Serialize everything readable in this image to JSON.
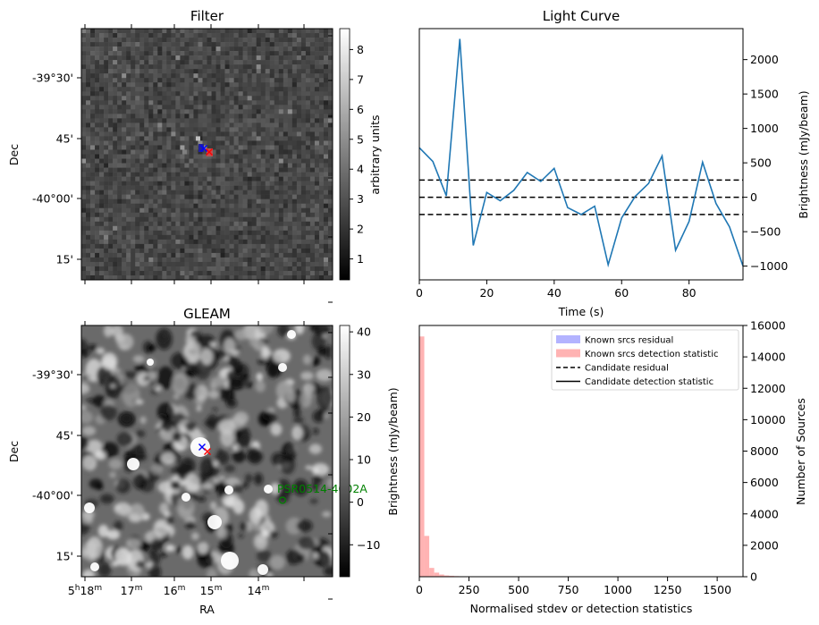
{
  "chart_data": [
    {
      "type": "heatmap",
      "title": "Filter",
      "ylabel": "Dec",
      "y_ticks": [
        "-39°30'",
        "45'",
        "-40°00'",
        "15'"
      ],
      "colorbar": {
        "label": "arbitrary units",
        "ticks": [
          1,
          2,
          3,
          4,
          5,
          6,
          7,
          8
        ],
        "range": [
          0.3,
          8.7
        ]
      },
      "markers": [
        {
          "symbol": "x",
          "color": "#0000ff"
        },
        {
          "symbol": "x",
          "color": "#ff0000"
        }
      ]
    },
    {
      "type": "line",
      "title": "Light Curve",
      "xlabel": "Time (s)",
      "ylabel": "Brightness (mJy/beam)",
      "xlim": [
        0,
        96
      ],
      "ylim": [
        -1200,
        2450
      ],
      "x_ticks": [
        0,
        20,
        40,
        60,
        80
      ],
      "y_ticks": [
        -1000,
        -500,
        0,
        500,
        1000,
        1500,
        2000
      ],
      "x": [
        0,
        4,
        8,
        12,
        16,
        20,
        24,
        28,
        32,
        36,
        40,
        44,
        48,
        52,
        56,
        60,
        64,
        68,
        72,
        76,
        80,
        84,
        88,
        92,
        96
      ],
      "y": [
        720,
        520,
        20,
        2300,
        -700,
        70,
        -50,
        100,
        360,
        230,
        420,
        -150,
        -250,
        -130,
        -980,
        -300,
        10,
        200,
        600,
        -770,
        -350,
        510,
        -90,
        -430,
        -1000
      ],
      "hlines": [
        250,
        0,
        -250
      ],
      "color": "#1f77b4"
    },
    {
      "type": "heatmap",
      "title": "GLEAM",
      "xlabel": "RA",
      "ylabel": "Dec",
      "x_ticks": [
        "5h18m",
        "17m",
        "16m",
        "15m",
        "14m"
      ],
      "y_ticks": [
        "-39°30'",
        "45'",
        "-40°00'",
        "15'"
      ],
      "colorbar": {
        "label": "Brightness (mJy/beam)",
        "ticks": [
          -10,
          0,
          10,
          20,
          30,
          40
        ],
        "range": [
          -17.5,
          41.5
        ]
      },
      "annotation": {
        "text": "PSR0514-4002A",
        "color": "#008000"
      }
    },
    {
      "type": "bar",
      "xlabel": "Normalised stdev or detection statistics",
      "ylabel": "Number of Sources",
      "xlim": [
        0,
        1630
      ],
      "ylim": [
        0,
        16000
      ],
      "x_ticks": [
        0,
        250,
        500,
        750,
        1000,
        1250,
        1500
      ],
      "y_ticks": [
        0,
        2000,
        4000,
        6000,
        8000,
        10000,
        12000,
        14000,
        16000
      ],
      "bin_width": 25,
      "series": [
        {
          "name": "Known srcs residual",
          "color": "#b3b3ff",
          "values": []
        },
        {
          "name": "Known srcs detection statistic",
          "color": "#ffb3b3",
          "values": [
            15300,
            2600,
            560,
            260,
            140,
            80,
            60,
            40,
            30,
            30,
            20,
            20,
            20,
            20,
            10,
            10,
            10,
            10,
            10,
            10,
            10,
            10,
            10,
            10,
            10,
            10,
            10,
            10,
            10,
            10,
            10,
            10,
            10,
            10,
            10,
            10,
            10,
            10,
            10,
            10,
            10,
            10,
            10,
            10,
            10,
            10,
            10,
            10,
            10,
            10,
            10,
            10,
            10,
            10,
            10,
            10,
            10,
            10,
            10,
            10,
            10,
            10,
            10,
            10,
            10
          ]
        }
      ],
      "legend_entries": [
        {
          "name": "Known srcs residual",
          "style": "patch",
          "color": "#b3b3ff"
        },
        {
          "name": "Known srcs detection statistic",
          "style": "patch",
          "color": "#ffb3b3"
        },
        {
          "name": "Candidate residual",
          "style": "dashed",
          "color": "#000000"
        },
        {
          "name": "Candidate detection statistic",
          "style": "solid",
          "color": "#000000"
        }
      ],
      "legend_position": "top-right"
    }
  ]
}
